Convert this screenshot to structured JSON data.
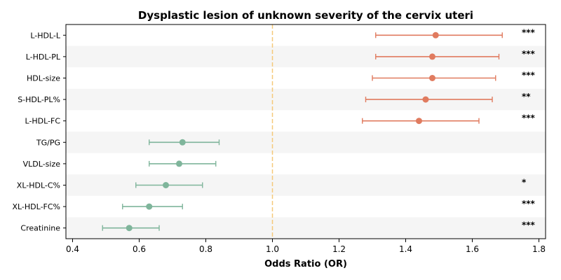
{
  "chart_data": {
    "type": "forest",
    "title": "Dysplastic lesion of unknown severity of the cervix uteri",
    "xlabel": "Odds Ratio (OR)",
    "ylabel": "",
    "xlim": [
      0.38,
      1.82
    ],
    "xticks": [
      "0.4",
      "0.6",
      "0.8",
      "1.0",
      "1.2",
      "1.4",
      "1.6",
      "1.8"
    ],
    "reference_line": 1.0,
    "reference_line_color": "#f5c97a",
    "color_positive": "#e07b5f",
    "color_negative": "#7fb59b",
    "row_stripe_color": "#f5f5f5",
    "grid": false,
    "rows": [
      {
        "label": "L-HDL-L",
        "or": 1.49,
        "lower": 1.31,
        "upper": 1.69,
        "sig": "***"
      },
      {
        "label": "L-HDL-PL",
        "or": 1.48,
        "lower": 1.31,
        "upper": 1.68,
        "sig": "***"
      },
      {
        "label": "HDL-size",
        "or": 1.48,
        "lower": 1.3,
        "upper": 1.67,
        "sig": "***"
      },
      {
        "label": "S-HDL-PL%",
        "or": 1.46,
        "lower": 1.28,
        "upper": 1.66,
        "sig": "**"
      },
      {
        "label": "L-HDL-FC",
        "or": 1.44,
        "lower": 1.27,
        "upper": 1.62,
        "sig": "***"
      },
      {
        "label": "TG/PG",
        "or": 0.73,
        "lower": 0.63,
        "upper": 0.84,
        "sig": ""
      },
      {
        "label": "VLDL-size",
        "or": 0.72,
        "lower": 0.63,
        "upper": 0.83,
        "sig": ""
      },
      {
        "label": "XL-HDL-C%",
        "or": 0.68,
        "lower": 0.59,
        "upper": 0.79,
        "sig": "*"
      },
      {
        "label": "XL-HDL-FC%",
        "or": 0.63,
        "lower": 0.55,
        "upper": 0.73,
        "sig": "***"
      },
      {
        "label": "Creatinine",
        "or": 0.57,
        "lower": 0.49,
        "upper": 0.66,
        "sig": "***"
      }
    ]
  }
}
